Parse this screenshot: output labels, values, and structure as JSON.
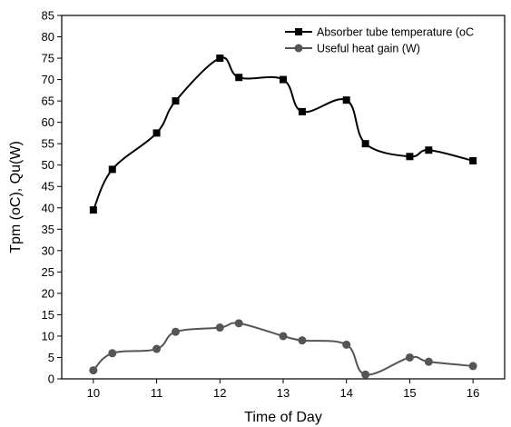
{
  "chart_data": {
    "type": "line",
    "title": "",
    "xlabel": "Time of Day",
    "ylabel": "Tpm (oC), Qu(W)",
    "xlim": [
      9.5,
      16.5
    ],
    "ylim": [
      0,
      85
    ],
    "x_ticks": [
      10,
      11,
      12,
      13,
      14,
      15,
      16
    ],
    "y_ticks": [
      0,
      5,
      10,
      15,
      20,
      25,
      30,
      35,
      40,
      45,
      50,
      55,
      60,
      65,
      70,
      75,
      80,
      85
    ],
    "grid": false,
    "legend_position": "top-right",
    "series": [
      {
        "name": "Absorber tube temperature (oC",
        "marker": "square",
        "color": "#000000",
        "x": [
          10,
          10.3,
          11,
          11.3,
          12,
          12.3,
          13,
          13.3,
          14,
          14.3,
          15,
          15.3,
          16
        ],
        "y": [
          39.5,
          49,
          57.5,
          65,
          75,
          70.5,
          70,
          62.5,
          65.2,
          55,
          52,
          53.5,
          51
        ]
      },
      {
        "name": "Useful heat gain (W)",
        "marker": "circle",
        "color": "#555555",
        "x": [
          10,
          10.3,
          11,
          11.3,
          12,
          12.3,
          13,
          13.3,
          14,
          14.3,
          15,
          15.3,
          16
        ],
        "y": [
          2,
          6,
          7,
          11,
          12,
          13,
          10,
          9,
          8,
          1,
          5,
          4,
          3
        ]
      }
    ]
  }
}
